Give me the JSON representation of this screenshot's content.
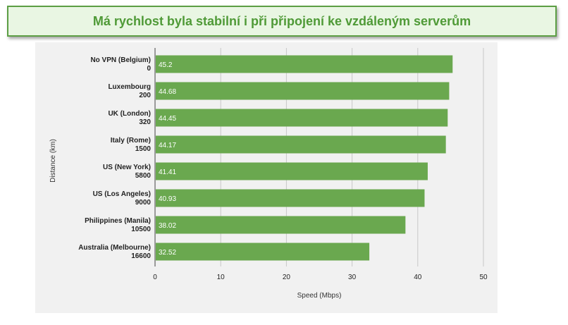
{
  "banner": {
    "title": "Má rychlost byla stabilní i při připojení ke vzdáleným serverům"
  },
  "chart_data": {
    "type": "bar",
    "orientation": "horizontal",
    "categories": [
      [
        "No VPN (Belgium)",
        "0"
      ],
      [
        "Luxembourg",
        "200"
      ],
      [
        "UK (London)",
        "320"
      ],
      [
        "Italy (Rome)",
        "1500"
      ],
      [
        "US (New York)",
        "5800"
      ],
      [
        "US (Los Angeles)",
        "9000"
      ],
      [
        "Philippines (Manila)",
        "10500"
      ],
      [
        "Australia (Melbourne)",
        "16600"
      ]
    ],
    "values": [
      45.2,
      44.68,
      44.45,
      44.17,
      41.41,
      40.93,
      38.02,
      32.52
    ],
    "data_labels": [
      "45.2",
      "44.68",
      "44.45",
      "44.17",
      "41.41",
      "40.93",
      "38.02",
      "32.52"
    ],
    "xlabel": "Speed (Mbps)",
    "ylabel": "Distance (km)",
    "xlim": [
      0,
      50
    ],
    "xticks": [
      0,
      10,
      20,
      30,
      40,
      50
    ],
    "grid": true,
    "bar_color": "#6aa84f",
    "background_color": "#f1f1f1"
  }
}
